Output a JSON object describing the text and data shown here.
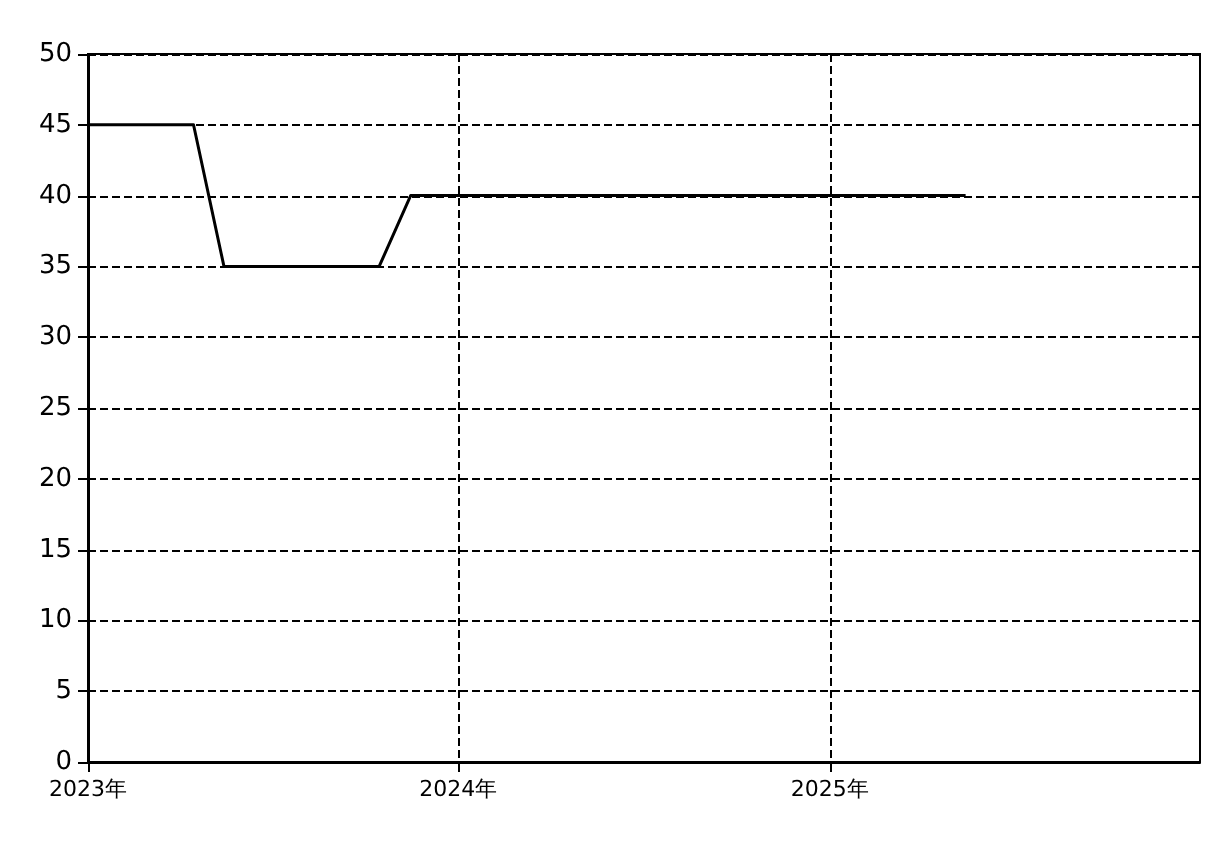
{
  "chart_data": {
    "type": "line",
    "x": [
      "2023-01-01",
      "2023-04-15",
      "2023-05-15",
      "2023-10-15",
      "2023-11-15",
      "2025-05-15"
    ],
    "series": [
      {
        "color": "#000000",
        "values": [
          45,
          45,
          35,
          35,
          40,
          40
        ]
      }
    ],
    "xlim": [
      "2023-01-01",
      "2026-01-01"
    ],
    "xticks": [
      {
        "value": "2023",
        "label": "2023年"
      },
      {
        "value": "2024",
        "label": "2024年"
      },
      {
        "value": "2025",
        "label": "2025年"
      }
    ],
    "ylim": [
      0,
      50
    ],
    "yticks": [
      0,
      5,
      10,
      15,
      20,
      25,
      30,
      35,
      40,
      45,
      50
    ],
    "grid": true,
    "marker": "none",
    "line_style": "solid"
  }
}
